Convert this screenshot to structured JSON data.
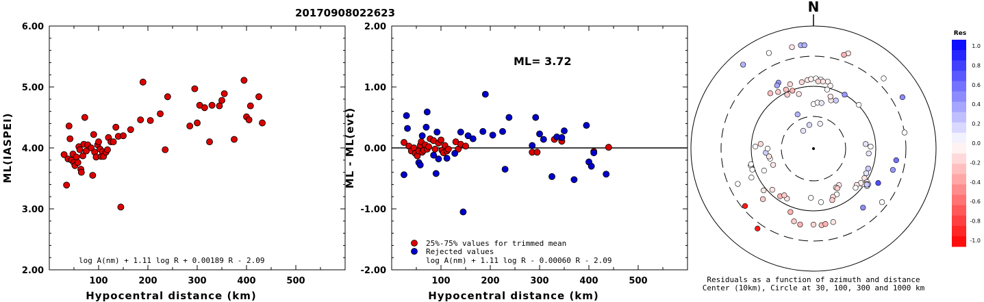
{
  "chart_data": [
    {
      "type": "scatter",
      "title": "20170908022623",
      "xlabel": "Hypocentral distance (km)",
      "ylabel": "ML(IASPEI)",
      "xlim": [
        0,
        600
      ],
      "ylim": [
        2.0,
        6.0
      ],
      "xticks": [
        "100",
        "200",
        "300",
        "400",
        "500"
      ],
      "yticks": [
        "2.00",
        "3.00",
        "4.00",
        "5.00",
        "6.00"
      ],
      "annotation": "log A(nm) + 1.11 log R + 0.00189 R - 2.09",
      "color": "#dd0000",
      "points": [
        [
          30,
          3.89
        ],
        [
          35,
          3.39
        ],
        [
          38,
          3.82
        ],
        [
          40,
          4.36
        ],
        [
          42,
          4.15
        ],
        [
          45,
          3.8
        ],
        [
          48,
          3.9
        ],
        [
          50,
          3.76
        ],
        [
          52,
          3.71
        ],
        [
          55,
          3.85
        ],
        [
          58,
          3.76
        ],
        [
          60,
          4.02
        ],
        [
          62,
          3.97
        ],
        [
          64,
          3.65
        ],
        [
          65,
          3.6
        ],
        [
          68,
          3.87
        ],
        [
          70,
          4.06
        ],
        [
          72,
          4.5
        ],
        [
          75,
          3.95
        ],
        [
          78,
          4.05
        ],
        [
          85,
          4.0
        ],
        [
          88,
          3.55
        ],
        [
          90,
          4.22
        ],
        [
          92,
          3.93
        ],
        [
          95,
          3.85
        ],
        [
          98,
          4.05
        ],
        [
          100,
          4.1
        ],
        [
          103,
          3.98
        ],
        [
          105,
          3.86
        ],
        [
          108,
          3.94
        ],
        [
          110,
          3.86
        ],
        [
          115,
          3.93
        ],
        [
          118,
          3.97
        ],
        [
          120,
          4.17
        ],
        [
          125,
          4.1
        ],
        [
          130,
          4.1
        ],
        [
          135,
          4.34
        ],
        [
          140,
          4.19
        ],
        [
          145,
          3.03
        ],
        [
          150,
          4.2
        ],
        [
          165,
          4.3
        ],
        [
          185,
          4.46
        ],
        [
          190,
          5.08
        ],
        [
          205,
          4.45
        ],
        [
          225,
          4.56
        ],
        [
          235,
          3.97
        ],
        [
          240,
          4.84
        ],
        [
          285,
          4.36
        ],
        [
          295,
          4.97
        ],
        [
          300,
          4.41
        ],
        [
          305,
          4.7
        ],
        [
          315,
          4.66
        ],
        [
          325,
          4.1
        ],
        [
          330,
          4.7
        ],
        [
          345,
          4.69
        ],
        [
          350,
          4.78
        ],
        [
          355,
          4.89
        ],
        [
          375,
          4.14
        ],
        [
          395,
          5.11
        ],
        [
          400,
          4.51
        ],
        [
          405,
          4.46
        ],
        [
          408,
          4.69
        ],
        [
          425,
          4.84
        ],
        [
          432,
          4.41
        ]
      ]
    },
    {
      "type": "scatter",
      "xlabel": "Hypocentral distance (km)",
      "ylabel": "ML - ML(evt)",
      "xlim": [
        0,
        600
      ],
      "ylim": [
        -2.0,
        2.0
      ],
      "xticks": [
        "100",
        "200",
        "300",
        "400",
        "500"
      ],
      "yticks": [
        "-2.00",
        "-1.00",
        "0.00",
        "1.00",
        "2.00"
      ],
      "ml_label": "ML= 3.72",
      "hline": 0.0,
      "legend": [
        {
          "label": "25%-75% values for trimmed mean",
          "color": "#dd0000"
        },
        {
          "label": "Rejected values",
          "color": "#0000cc"
        }
      ],
      "annotation": "log A(nm) + 1.11 log R - 0.00060 R - 2.09",
      "series": [
        {
          "color": "#dd0000",
          "points": [
            [
              25,
              0.09
            ],
            [
              35,
              0.03
            ],
            [
              40,
              -0.05
            ],
            [
              45,
              0.0
            ],
            [
              48,
              -0.09
            ],
            [
              52,
              -0.13
            ],
            [
              55,
              -0.05
            ],
            [
              58,
              0.04
            ],
            [
              60,
              0.1
            ],
            [
              62,
              -0.07
            ],
            [
              65,
              -0.04
            ],
            [
              68,
              0.05
            ],
            [
              72,
              -0.02
            ],
            [
              75,
              0.02
            ],
            [
              78,
              0.15
            ],
            [
              85,
              0.12
            ],
            [
              88,
              -0.02
            ],
            [
              95,
              0.08
            ],
            [
              100,
              0.13
            ],
            [
              102,
              -0.04
            ],
            [
              105,
              -0.08
            ],
            [
              108,
              0.04
            ],
            [
              112,
              -0.05
            ],
            [
              115,
              -0.02
            ],
            [
              130,
              0.1
            ],
            [
              135,
              -0.02
            ],
            [
              140,
              0.06
            ],
            [
              150,
              0.03
            ],
            [
              285,
              -0.07
            ],
            [
              295,
              -0.07
            ],
            [
              330,
              0.14
            ],
            [
              345,
              0.11
            ],
            [
              410,
              -0.06
            ],
            [
              440,
              0.01
            ]
          ]
        },
        {
          "color": "#0000cc",
          "points": [
            [
              25,
              -0.44
            ],
            [
              30,
              0.53
            ],
            [
              32,
              0.32
            ],
            [
              55,
              -0.24
            ],
            [
              58,
              -0.28
            ],
            [
              62,
              0.2
            ],
            [
              70,
              0.34
            ],
            [
              72,
              0.59
            ],
            [
              85,
              -0.12
            ],
            [
              90,
              -0.42
            ],
            [
              92,
              0.26
            ],
            [
              95,
              -0.18
            ],
            [
              112,
              -0.17
            ],
            [
              128,
              -0.09
            ],
            [
              140,
              0.26
            ],
            [
              145,
              -1.05
            ],
            [
              155,
              0.2
            ],
            [
              165,
              0.15
            ],
            [
              185,
              0.27
            ],
            [
              190,
              0.88
            ],
            [
              205,
              0.21
            ],
            [
              225,
              0.27
            ],
            [
              230,
              -0.35
            ],
            [
              238,
              0.5
            ],
            [
              285,
              0.04
            ],
            [
              292,
              0.5
            ],
            [
              300,
              0.23
            ],
            [
              308,
              0.14
            ],
            [
              325,
              -0.47
            ],
            [
              335,
              0.18
            ],
            [
              345,
              0.17
            ],
            [
              350,
              0.28
            ],
            [
              370,
              -0.52
            ],
            [
              395,
              0.37
            ],
            [
              400,
              -0.23
            ],
            [
              405,
              -0.3
            ],
            [
              410,
              -0.08
            ],
            [
              435,
              -0.43
            ]
          ]
        }
      ]
    },
    {
      "type": "polar-scatter",
      "north_label": "N",
      "caption_line1": "Residuals as a function of azimuth and distance",
      "caption_line2": "Center (10km), Circle at 30, 100, 300 and 1000 km",
      "colorbar_title": "Res",
      "colorbar_ticks": [
        "1.0",
        "0.8",
        "0.6",
        "0.4",
        "0.2",
        "0.0",
        "-0.2",
        "-0.4",
        "-0.6",
        "-0.8",
        "-1.0"
      ],
      "points": [
        [
          330,
          60,
          0.1
        ],
        [
          350,
          70,
          0.15
        ],
        [
          15,
          75,
          0.05
        ],
        [
          335,
          110,
          0.3
        ],
        [
          360,
          130,
          0.0
        ],
        [
          5,
          135,
          0.0
        ],
        [
          10,
          135,
          0.1
        ],
        [
          20,
          150,
          -0.1
        ],
        [
          25,
          155,
          0.2
        ],
        [
          345,
          165,
          -0.1
        ],
        [
          340,
          180,
          -0.3
        ],
        [
          335,
          190,
          -0.25
        ],
        [
          328,
          195,
          -0.2
        ],
        [
          322,
          205,
          -0.25
        ],
        [
          332,
          218,
          0.4
        ],
        [
          330,
          213,
          0.35
        ],
        [
          355,
          201,
          -0.1
        ],
        [
          358,
          203,
          -0.05
        ],
        [
          2,
          205,
          0.0
        ],
        [
          6,
          203,
          0.0
        ],
        [
          12,
          200,
          -0.05
        ],
        [
          8,
          198,
          -0.1
        ],
        [
          350,
          197,
          -0.15
        ],
        [
          340,
          200,
          -0.15
        ],
        [
          4,
          197,
          -0.15
        ],
        [
          15,
          190,
          -0.05
        ],
        [
          334,
          175,
          -0.2
        ],
        [
          13,
          177,
          0.0
        ],
        [
          18,
          160,
          -0.08
        ],
        [
          30,
          182,
          0.4
        ],
        [
          46,
          184,
          0.0
        ],
        [
          348,
          303,
          -0.1
        ],
        [
          353,
          304,
          0.3
        ],
        [
          355,
          303,
          0.3
        ],
        [
          20,
          296,
          -0.1
        ],
        [
          18,
          288,
          -0.3
        ],
        [
          320,
          320,
          0.3
        ],
        [
          335,
          308,
          0.0
        ],
        [
          45,
          290,
          0.0
        ],
        [
          60,
          300,
          0.45
        ],
        [
          80,
          270,
          0.0
        ],
        [
          98,
          244,
          0.55
        ],
        [
          105,
          240,
          0.4
        ],
        [
          88,
          167,
          0.0
        ],
        [
          85,
          153,
          0.1
        ],
        [
          95,
          162,
          0.1
        ],
        [
          110,
          170,
          0.2
        ],
        [
          120,
          172,
          -0.1
        ],
        [
          122,
          184,
          0.0
        ],
        [
          124,
          184,
          -0.2
        ],
        [
          126,
          177,
          -0.1
        ],
        [
          126,
          171,
          -0.05
        ],
        [
          130,
          165,
          -0.1
        ],
        [
          133,
          168,
          0.0
        ],
        [
          125,
          191,
          0.15
        ],
        [
          123,
          191,
          0.3
        ],
        [
          124,
          188,
          0.2
        ],
        [
          118,
          214,
          0.7
        ],
        [
          128,
          254,
          0.0
        ],
        [
          145,
          130,
          -0.1
        ],
        [
          150,
          131,
          -0.1
        ],
        [
          149,
          135,
          -0.2
        ],
        [
          153,
          150,
          0.0
        ],
        [
          158,
          152,
          -0.15
        ],
        [
          160,
          160,
          -0.2
        ],
        [
          172,
          158,
          0.0
        ],
        [
          183,
          144,
          0.0
        ],
        [
          208,
          165,
          -0.1
        ],
        [
          215,
          170,
          -0.3
        ],
        [
          212,
          161,
          -0.2
        ],
        [
          225,
          170,
          -0.1
        ],
        [
          200,
          197,
          -0.3
        ],
        [
          195,
          220,
          -0.2
        ],
        [
          190,
          225,
          -0.3
        ],
        [
          180,
          222,
          -0.15
        ],
        [
          174,
          225,
          -0.25
        ],
        [
          171,
          223,
          -0.3
        ],
        [
          165,
          222,
          -0.1
        ],
        [
          225,
          209,
          -0.2
        ],
        [
          230,
          190,
          -0.1
        ],
        [
          230,
          261,
          -0.9
        ],
        [
          215,
          285,
          -0.9
        ],
        [
          245,
          200,
          0.0
        ],
        [
          257,
          130,
          0.0
        ],
        [
          260,
          132,
          -0.1
        ],
        [
          265,
          140,
          0.2
        ],
        [
          270,
          134,
          0.0
        ],
        [
          275,
          155,
          -0.15
        ],
        [
          272,
          170,
          0.0
        ],
        [
          248,
          127,
          -0.1
        ],
        [
          246,
          158,
          0.0
        ],
        [
          255,
          190,
          -0.05
        ],
        [
          251,
          189,
          0.0
        ],
        [
          256,
          188,
          0.0
        ],
        [
          245,
          244,
          0.0
        ],
        [
          140,
          225,
          0.45
        ],
        [
          115,
          170,
          0.1
        ]
      ]
    }
  ]
}
